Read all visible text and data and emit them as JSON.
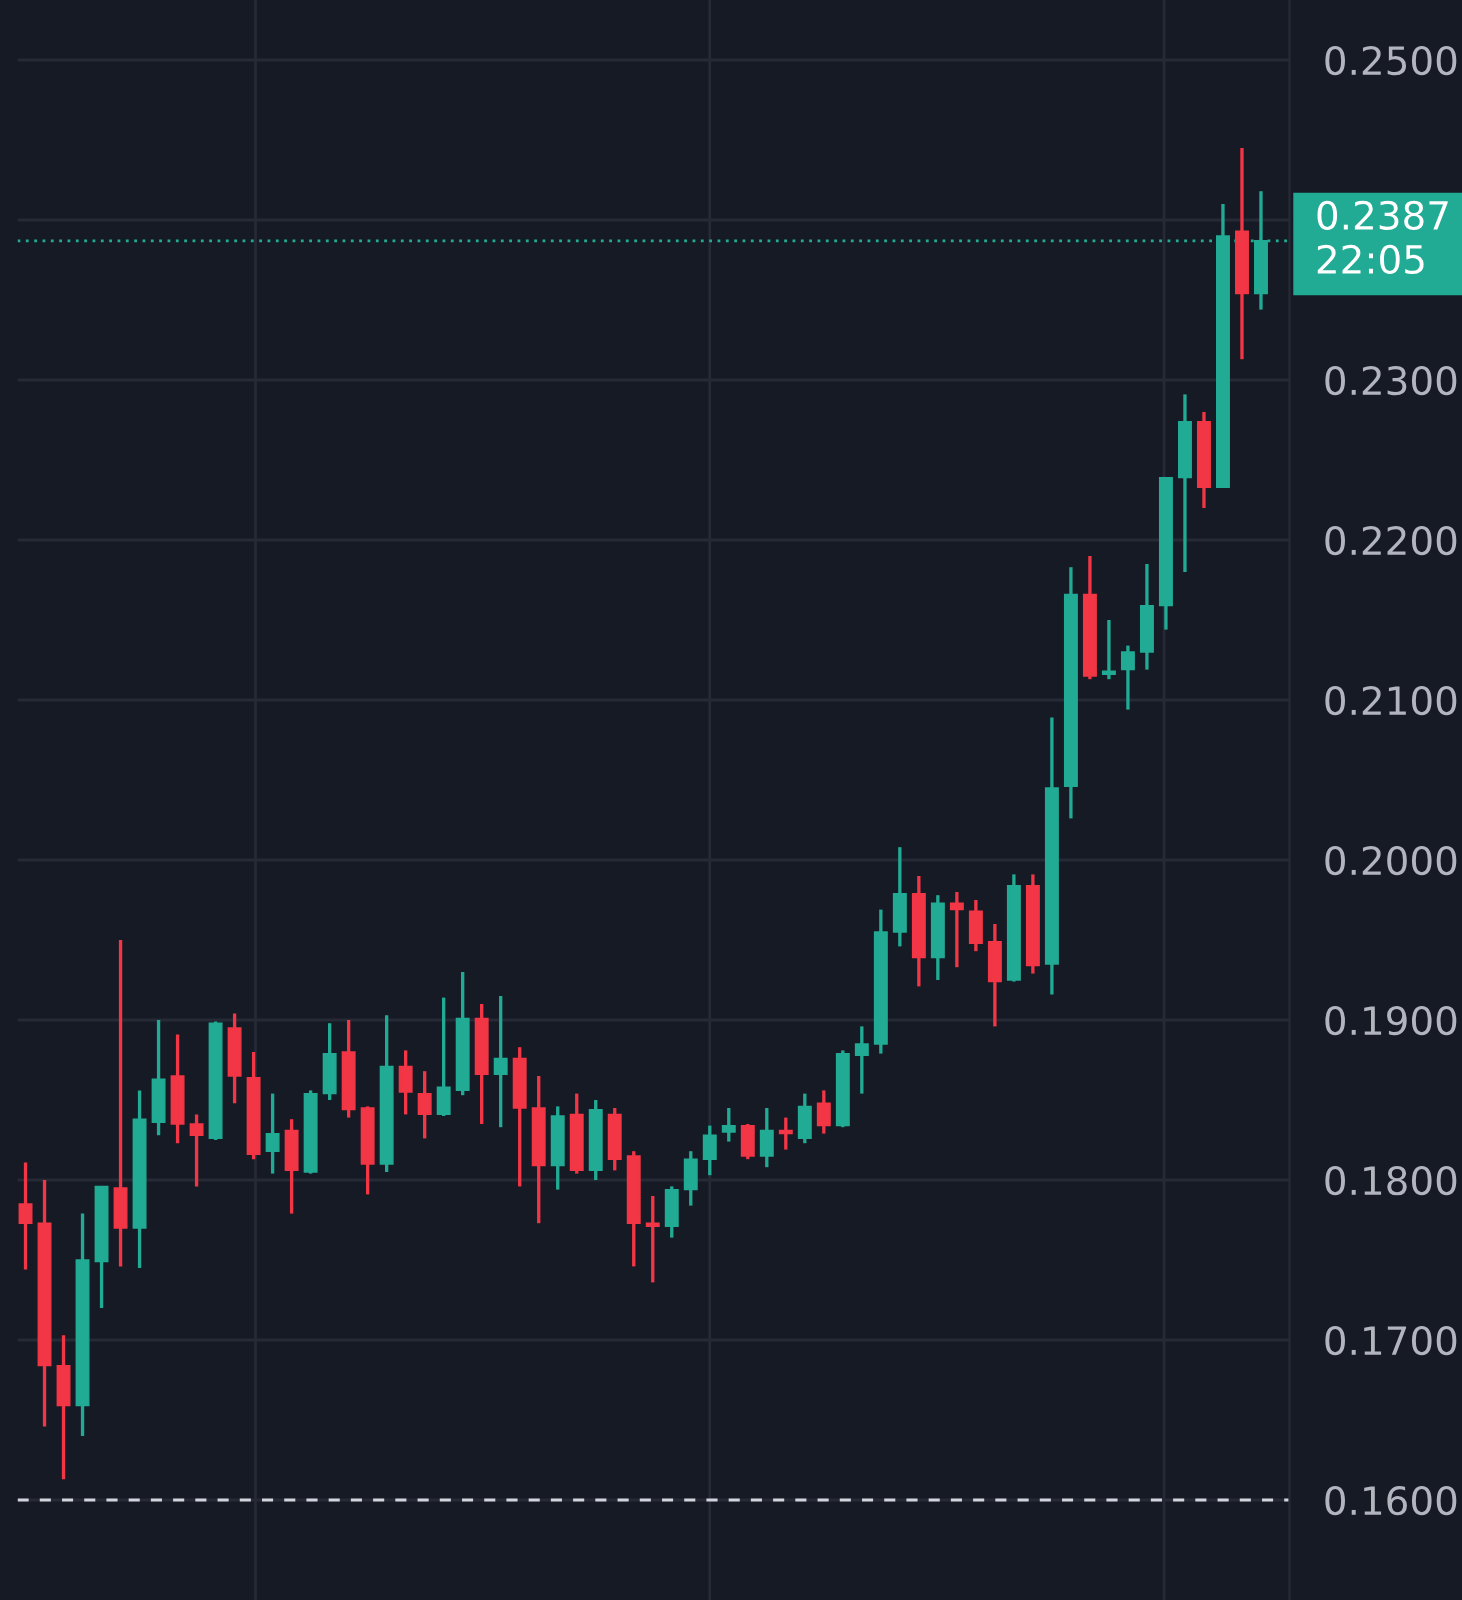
{
  "chart_data": {
    "type": "candlestick",
    "categories": [
      null,
      null,
      null,
      null,
      null,
      null,
      null,
      null,
      null,
      null,
      null,
      null,
      null,
      null,
      null,
      null,
      null,
      null,
      null,
      null,
      null,
      null,
      null,
      null,
      null,
      null,
      null,
      null,
      null,
      null,
      null,
      null,
      null,
      null,
      null,
      null,
      null,
      null,
      null,
      null,
      null,
      null,
      null,
      null,
      null,
      null,
      null,
      null,
      null,
      null,
      null,
      null,
      null,
      null,
      null,
      null,
      null,
      null,
      null,
      null,
      null,
      null,
      null,
      null,
      null,
      null
    ],
    "ohlc": [
      [
        0.1785,
        0.1811,
        0.1744,
        0.1773
      ],
      [
        0.1773,
        0.18,
        0.1646,
        0.1684
      ],
      [
        0.1684,
        0.1703,
        0.1613,
        0.1659
      ],
      [
        0.1659,
        0.1779,
        0.164,
        0.175
      ],
      [
        0.1749,
        0.1796,
        0.172,
        0.1796
      ],
      [
        0.1795,
        0.195,
        0.1746,
        0.177
      ],
      [
        0.177,
        0.1856,
        0.1745,
        0.1838
      ],
      [
        0.1836,
        0.19,
        0.1828,
        0.1863
      ],
      [
        0.1865,
        0.1891,
        0.1823,
        0.1835
      ],
      [
        0.1835,
        0.1841,
        0.1796,
        0.1828
      ],
      [
        0.1826,
        0.1899,
        0.1825,
        0.1898
      ],
      [
        0.1895,
        0.1904,
        0.1848,
        0.1865
      ],
      [
        0.1864,
        0.188,
        0.1813,
        0.1816
      ],
      [
        0.1818,
        0.1854,
        0.1804,
        0.1829
      ],
      [
        0.1831,
        0.1838,
        0.1779,
        0.1806
      ],
      [
        0.1805,
        0.1856,
        0.1804,
        0.1854
      ],
      [
        0.1854,
        0.1898,
        0.185,
        0.1879
      ],
      [
        0.188,
        0.19,
        0.1839,
        0.1844
      ],
      [
        0.1845,
        0.1846,
        0.1791,
        0.181
      ],
      [
        0.181,
        0.1903,
        0.1805,
        0.1871
      ],
      [
        0.1871,
        0.1881,
        0.1841,
        0.1855
      ],
      [
        0.1854,
        0.1868,
        0.1826,
        0.1841
      ],
      [
        0.1841,
        0.1914,
        0.184,
        0.1858
      ],
      [
        0.1856,
        0.193,
        0.1853,
        0.1901
      ],
      [
        0.1901,
        0.191,
        0.1835,
        0.1866
      ],
      [
        0.1866,
        0.1915,
        0.1833,
        0.1876
      ],
      [
        0.1876,
        0.1883,
        0.1796,
        0.1845
      ],
      [
        0.1845,
        0.1865,
        0.1773,
        0.1809
      ],
      [
        0.1809,
        0.1846,
        0.1794,
        0.184
      ],
      [
        0.1841,
        0.1854,
        0.1804,
        0.1806
      ],
      [
        0.1806,
        0.185,
        0.18,
        0.1844
      ],
      [
        0.1841,
        0.1845,
        0.1806,
        0.1813
      ],
      [
        0.1815,
        0.1818,
        0.1746,
        0.1773
      ],
      [
        0.1773,
        0.179,
        0.1736,
        0.1771
      ],
      [
        0.1771,
        0.1796,
        0.1764,
        0.1794
      ],
      [
        0.1794,
        0.1818,
        0.1784,
        0.1813
      ],
      [
        0.1813,
        0.1834,
        0.1803,
        0.1828
      ],
      [
        0.183,
        0.1845,
        0.1824,
        0.1834
      ],
      [
        0.1834,
        0.1835,
        0.1813,
        0.1815
      ],
      [
        0.1815,
        0.1845,
        0.1808,
        0.1831
      ],
      [
        0.1831,
        0.1839,
        0.1819,
        0.1829
      ],
      [
        0.1826,
        0.1854,
        0.1823,
        0.1846
      ],
      [
        0.1848,
        0.1856,
        0.1829,
        0.1834
      ],
      [
        0.1834,
        0.1881,
        0.1833,
        0.1879
      ],
      [
        0.1878,
        0.1896,
        0.1854,
        0.1885
      ],
      [
        0.1885,
        0.1969,
        0.1879,
        0.1955
      ],
      [
        0.1955,
        0.2008,
        0.1946,
        0.1979
      ],
      [
        0.1979,
        0.199,
        0.1921,
        0.1939
      ],
      [
        0.1939,
        0.1978,
        0.1925,
        0.1973
      ],
      [
        0.1973,
        0.198,
        0.1933,
        0.1969
      ],
      [
        0.1968,
        0.1975,
        0.1943,
        0.1948
      ],
      [
        0.1949,
        0.196,
        0.1896,
        0.1924
      ],
      [
        0.1925,
        0.1991,
        0.1924,
        0.1984
      ],
      [
        0.1984,
        0.1991,
        0.1929,
        0.1934
      ],
      [
        0.1935,
        0.2089,
        0.1916,
        0.2045
      ],
      [
        0.2046,
        0.2183,
        0.2026,
        0.2166
      ],
      [
        0.2166,
        0.219,
        0.2113,
        0.2115
      ],
      [
        0.2116,
        0.215,
        0.2113,
        0.2118
      ],
      [
        0.2119,
        0.2134,
        0.2094,
        0.213
      ],
      [
        0.213,
        0.2185,
        0.2119,
        0.2159
      ],
      [
        0.2159,
        0.2239,
        0.2144,
        0.2239
      ],
      [
        0.2239,
        0.2291,
        0.218,
        0.2274
      ],
      [
        0.2274,
        0.228,
        0.222,
        0.2233
      ],
      [
        0.2233,
        0.241,
        0.2233,
        0.239
      ],
      [
        0.2393,
        0.2445,
        0.2313,
        0.2354
      ],
      [
        0.2354,
        0.2418,
        0.2344,
        0.2387
      ]
    ],
    "colors": [
      "#f23645",
      "#f23645",
      "#f23645",
      "#22ab94",
      "#22ab94",
      "#f23645",
      "#22ab94",
      "#22ab94",
      "#f23645",
      "#f23645",
      "#22ab94",
      "#f23645",
      "#f23645",
      "#22ab94",
      "#f23645",
      "#22ab94",
      "#22ab94",
      "#f23645",
      "#f23645",
      "#22ab94",
      "#f23645",
      "#f23645",
      "#22ab94",
      "#22ab94",
      "#f23645",
      "#22ab94",
      "#f23645",
      "#f23645",
      "#22ab94",
      "#f23645",
      "#22ab94",
      "#f23645",
      "#f23645",
      "#f23645",
      "#22ab94",
      "#22ab94",
      "#22ab94",
      "#22ab94",
      "#f23645",
      "#22ab94",
      "#f23645",
      "#22ab94",
      "#f23645",
      "#22ab94",
      "#22ab94",
      "#22ab94",
      "#22ab94",
      "#f23645",
      "#22ab94",
      "#f23645",
      "#f23645",
      "#f23645",
      "#22ab94",
      "#f23645",
      "#22ab94",
      "#22ab94",
      "#f23645",
      "#22ab94",
      "#22ab94",
      "#22ab94",
      "#22ab94",
      "#22ab94",
      "#f23645",
      "#22ab94",
      "#f23645",
      "#22ab94"
    ],
    "ylim": [
      0.15375,
      0.25375
    ],
    "yticks": [
      {
        "value": 0.16,
        "label": "0.1600"
      },
      {
        "value": 0.17,
        "label": "0.1700"
      },
      {
        "value": 0.18,
        "label": "0.1800"
      },
      {
        "value": 0.19,
        "label": "0.1900"
      },
      {
        "value": 0.2,
        "label": "0.2000"
      },
      {
        "value": 0.21,
        "label": "0.2100"
      },
      {
        "value": 0.22,
        "label": "0.2200"
      },
      {
        "value": 0.23,
        "label": "0.2300"
      },
      {
        "value": 0.24,
        "label": null
      },
      {
        "value": 0.25,
        "label": "0.2500"
      }
    ],
    "grid": true,
    "ref_lines": [
      {
        "axis": "y",
        "value": 0.2387,
        "label": "0.2387",
        "color": "#22ab94",
        "line_style": "dotted"
      },
      {
        "axis": "y",
        "value": 0.16,
        "label": null,
        "color": "#d1d4dc",
        "line_style": "dashed"
      }
    ],
    "annotations": [
      "22:05"
    ]
  }
}
